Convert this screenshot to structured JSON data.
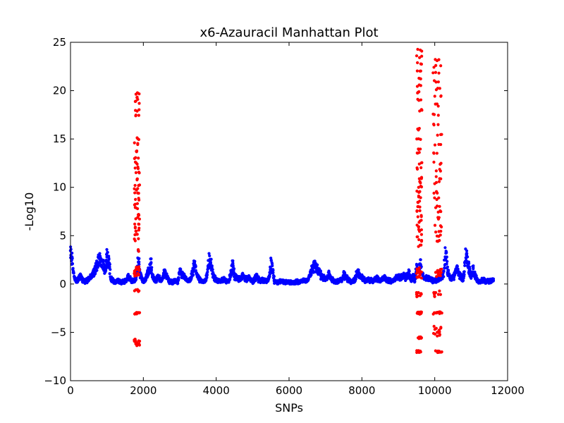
{
  "chart_data": {
    "type": "scatter",
    "title": "x6-Azauracil Manhattan Plot",
    "xlabel": "SNPs",
    "ylabel": "-Log10",
    "xlim": [
      0,
      12000
    ],
    "ylim": [
      -10,
      25
    ],
    "grid": false,
    "legend": "none",
    "x_ticks": [
      0,
      2000,
      4000,
      6000,
      8000,
      10000,
      12000
    ],
    "x_tick_labels": [
      "0",
      "2000",
      "4000",
      "6000",
      "8000",
      "10000",
      "12000"
    ],
    "y_ticks": [
      -10,
      -5,
      0,
      5,
      10,
      15,
      20,
      25
    ],
    "y_tick_labels": [
      "−10",
      "−5",
      "0",
      "5",
      "10",
      "15",
      "20",
      "25"
    ],
    "colors": {
      "background": "#ffffff",
      "series_blue": "#0000ff",
      "series_red": "#ff0000"
    },
    "series": [
      {
        "color": "#0000ff",
        "profile_x": [
          0,
          40,
          80,
          120,
          180,
          250,
          320,
          400,
          500,
          600,
          700,
          800,
          880,
          950,
          1000,
          1060,
          1100,
          1200,
          1300,
          1400,
          1500,
          1600,
          1700,
          1760,
          1800,
          1860,
          1900,
          1950,
          2000,
          2050,
          2100,
          2150,
          2200,
          2250,
          2300,
          2350,
          2400,
          2500,
          2550,
          2600,
          2650,
          2700,
          2800,
          2900,
          2950,
          3000,
          3100,
          3150,
          3200,
          3300,
          3350,
          3400,
          3500,
          3600,
          3700,
          3750,
          3800,
          3850,
          3900,
          3950,
          4000,
          4100,
          4200,
          4300,
          4350,
          4400,
          4450,
          4500,
          4600,
          4700,
          4750,
          4800,
          4900,
          5000,
          5050,
          5100,
          5200,
          5300,
          5400,
          5450,
          5500,
          5550,
          5600,
          5700,
          5800,
          5900,
          6000,
          6100,
          6200,
          6300,
          6400,
          6500,
          6600,
          6700,
          6750,
          6800,
          6900,
          7000,
          7050,
          7100,
          7200,
          7300,
          7400,
          7450,
          7500,
          7600,
          7700,
          7800,
          7850,
          7900,
          8000,
          8100,
          8200,
          8300,
          8400,
          8500,
          8600,
          8700,
          8800,
          8900,
          9000,
          9050,
          9100,
          9150,
          9200,
          9300,
          9350,
          9400,
          9450,
          9500,
          9550,
          9600,
          9650,
          9700,
          9800,
          9900,
          10000,
          10100,
          10150,
          10200,
          10250,
          10300,
          10350,
          10400,
          10450,
          10500,
          10550,
          10600,
          10700,
          10750,
          10800,
          10850,
          10900,
          10950,
          11000,
          11050,
          11100,
          11150,
          11200,
          11300,
          11400,
          11500,
          11600
        ],
        "profile_y": [
          3.8,
          3.3,
          1.6,
          0.6,
          0.4,
          1.0,
          0.6,
          0.3,
          0.7,
          1.1,
          2.2,
          3.0,
          2.6,
          2.0,
          3.6,
          2.8,
          0.8,
          0.2,
          0.5,
          0.2,
          0.4,
          1.0,
          0.3,
          0.6,
          0.5,
          3.5,
          1.5,
          0.9,
          0.3,
          0.6,
          1.2,
          1.6,
          2.8,
          1.0,
          0.7,
          0.3,
          1.0,
          0.5,
          1.3,
          1.7,
          1.0,
          0.4,
          0.2,
          0.5,
          0.3,
          1.6,
          1.0,
          0.8,
          0.4,
          0.5,
          1.5,
          2.4,
          0.8,
          0.3,
          0.4,
          1.2,
          3.2,
          2.8,
          1.5,
          0.8,
          0.5,
          0.4,
          0.6,
          0.3,
          0.5,
          1.2,
          2.6,
          1.0,
          0.6,
          0.8,
          1.2,
          0.5,
          0.9,
          0.3,
          0.6,
          1.0,
          0.4,
          0.5,
          0.3,
          0.8,
          2.5,
          2.0,
          0.3,
          0.2,
          0.4,
          0.2,
          0.3,
          0.1,
          0.3,
          0.2,
          0.5,
          0.4,
          1.5,
          2.5,
          2.0,
          1.7,
          1.0,
          0.6,
          0.8,
          1.2,
          0.5,
          0.3,
          0.5,
          0.4,
          1.2,
          0.6,
          0.3,
          0.5,
          1.2,
          1.5,
          0.8,
          0.4,
          0.6,
          0.3,
          0.8,
          0.4,
          0.9,
          0.5,
          0.4,
          0.6,
          1.0,
          0.6,
          0.9,
          1.3,
          0.8,
          1.5,
          0.5,
          1.0,
          0.4,
          2.0,
          1.5,
          2.8,
          1.5,
          0.6,
          0.8,
          0.5,
          0.4,
          0.6,
          0.8,
          1.0,
          1.5,
          4.5,
          1.8,
          1.0,
          0.6,
          0.8,
          1.2,
          2.0,
          1.0,
          0.5,
          1.2,
          3.8,
          3.2,
          1.8,
          1.0,
          2.0,
          1.2,
          0.6,
          0.3,
          0.5,
          0.4,
          0.3,
          0.5
        ],
        "note_points": "continuous dense band following profile with spread"
      },
      {
        "color": "#ff0000",
        "clusters": [
          {
            "x_range": [
              1750,
              1900
            ],
            "y_values": [
              19.7,
              19.2,
              18.8,
              18.0,
              17.5,
              15.0,
              14.5,
              13.8,
              13.0,
              12.5,
              12.0,
              11.5,
              10.8,
              10.2,
              9.8,
              9.4,
              8.8,
              8.2,
              7.8,
              7.2,
              6.8,
              6.3,
              5.9,
              5.5,
              5.1,
              4.6,
              3.5,
              1.8,
              1.5,
              1.2,
              0.9,
              1.6,
              1.4,
              1.0,
              -0.6,
              -0.7,
              -3.0,
              -3.0,
              -3.0,
              -3.0,
              -5.8,
              -5.9,
              -6.0,
              -6.2,
              -6.3
            ]
          },
          {
            "x_range": [
              9500,
              9650
            ],
            "y_values": [
              24.2,
              23.5,
              22.8,
              22.0,
              21.2,
              20.5,
              19.8,
              19.0,
              18.0,
              16.0,
              15.0,
              14.0,
              13.5,
              12.5,
              12.0,
              11.0,
              10.5,
              10.0,
              9.5,
              9.0,
              8.5,
              8.0,
              7.5,
              7.0,
              6.5,
              6.0,
              5.5,
              5.0,
              4.5,
              4.0,
              1.6,
              1.4,
              1.2,
              1.0,
              0.8,
              0.6,
              -1.0,
              -1.2,
              -1.0,
              -3.0,
              -3.0,
              -3.0,
              -3.0,
              -5.5,
              -5.6,
              -5.7,
              -7.0,
              -7.0,
              -7.0,
              -7.0
            ]
          },
          {
            "x_range": [
              9950,
              10200
            ],
            "y_values": [
              23.1,
              22.5,
              21.8,
              21.0,
              20.2,
              19.5,
              18.5,
              17.5,
              16.5,
              15.5,
              14.5,
              13.5,
              12.5,
              11.8,
              11.0,
              10.5,
              9.5,
              8.8,
              8.0,
              7.5,
              6.8,
              6.0,
              5.5,
              5.0,
              4.5,
              1.6,
              1.4,
              1.2,
              1.0,
              0.8,
              -1.0,
              -0.8,
              -1.2,
              -3.0,
              -3.0,
              -3.0,
              -3.0,
              -4.5,
              -4.7,
              -4.9,
              -5.1,
              -5.3,
              -7.0,
              -7.0,
              -7.0,
              -7.0
            ]
          }
        ]
      }
    ]
  }
}
